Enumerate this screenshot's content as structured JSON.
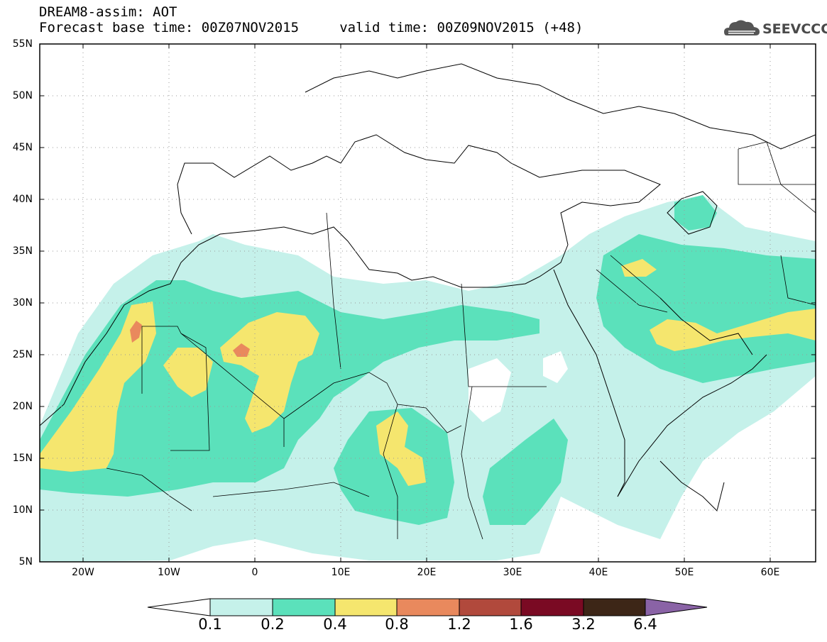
{
  "header": {
    "line1": "DREAM8-assim: AOT",
    "line2": "Forecast base time: 00Z07NOV2015     valid time: 00Z09NOV2015 (+48)",
    "logo_text": "SEEVCCC"
  },
  "map": {
    "projection": "lat-lon",
    "lon_range": [
      -25,
      65
    ],
    "lat_range": [
      5,
      55
    ],
    "lat_labels": [
      "55N",
      "50N",
      "45N",
      "40N",
      "35N",
      "30N",
      "25N",
      "20N",
      "15N",
      "10N",
      "5N"
    ],
    "lon_labels": [
      "20W",
      "10W",
      "0",
      "10E",
      "20E",
      "30E",
      "40E",
      "50E",
      "60E"
    ],
    "grid": "dotted"
  },
  "legend": {
    "levels": [
      "0.1",
      "0.2",
      "0.4",
      "0.8",
      "1.2",
      "1.6",
      "3.2",
      "6.4"
    ],
    "colors": [
      "#ffffff",
      "#c5f1ea",
      "#5be1bb",
      "#f5e66e",
      "#e9895d",
      "#b1493c",
      "#7a0a23",
      "#3d2617",
      "#8a63a6"
    ]
  }
}
